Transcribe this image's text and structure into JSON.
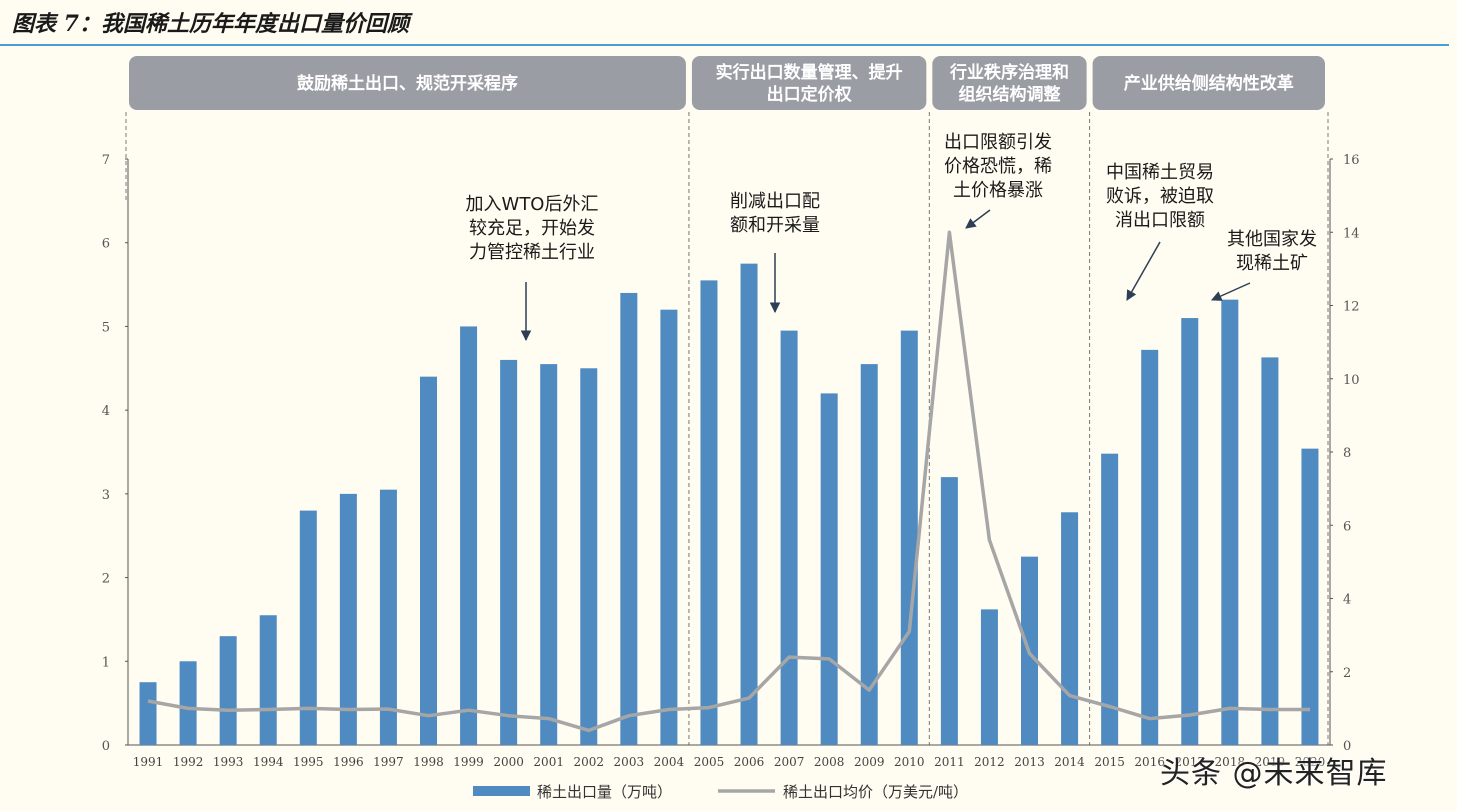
{
  "figure_title": "图表 7：我国稀土历年年度出口量价回顾",
  "watermark": "头条 @未来智库",
  "phases": [
    {
      "label_lines": [
        "鼓励稀土出口、规范开采程序"
      ],
      "start": "1991",
      "end": "2004"
    },
    {
      "label_lines": [
        "实行出口数量管理、提升",
        "出口定价权"
      ],
      "start": "2005",
      "end": "2010"
    },
    {
      "label_lines": [
        "行业秩序治理和",
        "组织结构调整"
      ],
      "start": "2011",
      "end": "2014"
    },
    {
      "label_lines": [
        "产业供给侧结构性改革"
      ],
      "start": "2015",
      "end": "2020"
    }
  ],
  "annotations": [
    {
      "lines": [
        "加入WTO后外汇",
        "较充足，开始发",
        "力管控稀土行业"
      ],
      "category": "2000"
    },
    {
      "lines": [
        "削减出口配",
        "额和开采量"
      ],
      "category": "2007"
    },
    {
      "lines": [
        "出口限额引发",
        "价格恐慌，稀",
        "土价格暴涨"
      ],
      "category": "2011"
    },
    {
      "lines": [
        "中国稀土贸易",
        "败诉，被迫取",
        "消出口限额"
      ],
      "category": "2015"
    },
    {
      "lines": [
        "其他国家发",
        "现稀土矿"
      ],
      "category": "2018"
    }
  ],
  "chart_data": {
    "type": "bar+line",
    "categories": [
      "1991",
      "1992",
      "1993",
      "1994",
      "1995",
      "1996",
      "1997",
      "1998",
      "1999",
      "2000",
      "2001",
      "2002",
      "2003",
      "2004",
      "2005",
      "2006",
      "2007",
      "2008",
      "2009",
      "2010",
      "2011",
      "2012",
      "2013",
      "2014",
      "2015",
      "2016",
      "2017",
      "2018",
      "2019",
      "2020"
    ],
    "series": [
      {
        "name": "稀土出口量（万吨）",
        "type": "bar",
        "axis": "left",
        "color": "#4f8bc0",
        "values": [
          0.75,
          1.0,
          1.3,
          1.55,
          2.8,
          3.0,
          3.05,
          4.4,
          5.0,
          4.6,
          4.55,
          4.5,
          5.4,
          5.2,
          5.55,
          5.75,
          4.95,
          4.2,
          4.55,
          4.95,
          3.2,
          1.62,
          2.25,
          2.78,
          3.48,
          4.72,
          5.1,
          5.32,
          4.63,
          3.54
        ]
      },
      {
        "name": "稀土出口均价（万美元/吨）",
        "type": "line",
        "axis": "right",
        "color": "#a6a6a6",
        "values": [
          1.2,
          1.0,
          0.95,
          0.97,
          1.0,
          0.97,
          0.98,
          0.8,
          0.95,
          0.8,
          0.72,
          0.4,
          0.8,
          0.97,
          1.02,
          1.28,
          2.4,
          2.35,
          1.5,
          3.1,
          14.0,
          5.6,
          2.5,
          1.35,
          1.05,
          0.72,
          0.82,
          1.0,
          0.97,
          0.97
        ]
      }
    ],
    "left_axis": {
      "ylim": [
        0,
        7
      ],
      "ticks": [
        "0",
        "1",
        "2",
        "3",
        "4",
        "5",
        "6",
        "7"
      ]
    },
    "right_axis": {
      "ylim": [
        0,
        16
      ],
      "ticks": [
        "0",
        "2",
        "4",
        "6",
        "8",
        "10",
        "12",
        "14",
        "16"
      ]
    },
    "legend_position": "bottom",
    "grid": false
  }
}
